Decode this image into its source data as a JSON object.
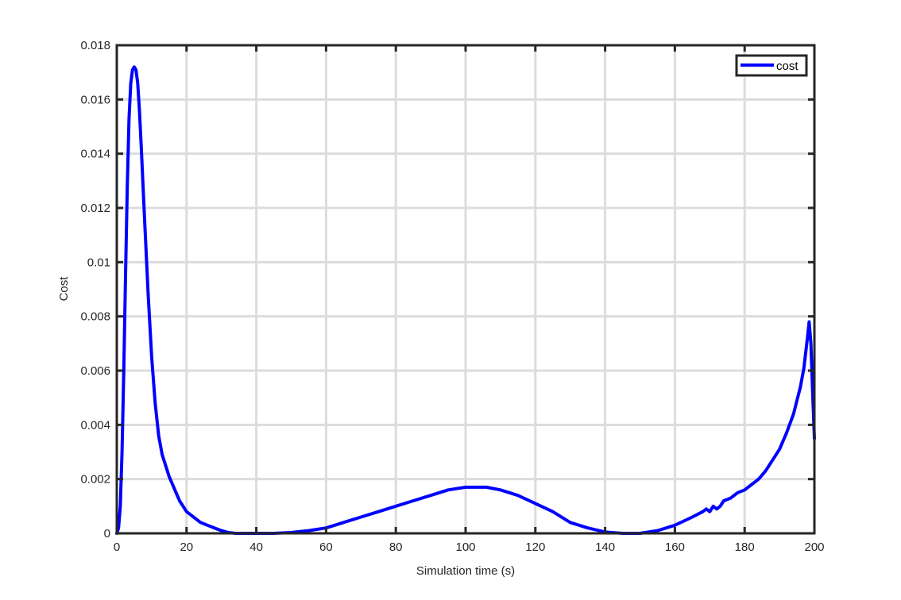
{
  "chart_data": {
    "type": "line",
    "xlabel": "Simulation time (s)",
    "ylabel": "Cost",
    "xlim": [
      0,
      200
    ],
    "ylim": [
      0,
      0.018
    ],
    "grid": true,
    "legend_position": "top-right",
    "x_ticks": [
      0,
      20,
      40,
      60,
      80,
      100,
      120,
      140,
      160,
      180,
      200
    ],
    "x_tick_labels": [
      "0",
      "20",
      "40",
      "60",
      "80",
      "100",
      "120",
      "140",
      "160",
      "180",
      "200"
    ],
    "y_ticks": [
      0,
      0.002,
      0.004,
      0.006,
      0.008,
      0.01,
      0.012,
      0.014,
      0.016,
      0.018
    ],
    "y_tick_labels": [
      "0",
      "0.002",
      "0.004",
      "0.006",
      "0.008",
      "0.01",
      "0.012",
      "0.014",
      "0.016",
      "0.018"
    ],
    "colors": {
      "series": "#0000ff",
      "grid": "#dcdcdc",
      "axes": "#262626"
    },
    "series": [
      {
        "name": "cost",
        "x": [
          0,
          0.5,
          1,
          1.5,
          2,
          2.5,
          3,
          3.5,
          4,
          4.5,
          5,
          5.5,
          6,
          6.5,
          7,
          8,
          9,
          10,
          11,
          12,
          13,
          14,
          15,
          16,
          17,
          18,
          19,
          20,
          21,
          22,
          24,
          26,
          28,
          30,
          32,
          34,
          36,
          40,
          45,
          50,
          55,
          60,
          65,
          70,
          75,
          80,
          85,
          90,
          95,
          100,
          103,
          106,
          110,
          115,
          120,
          125,
          130,
          135,
          140,
          145,
          148,
          150,
          155,
          160,
          165,
          168,
          169,
          170,
          171,
          172,
          173,
          174,
          176,
          178,
          180,
          182,
          184,
          186,
          188,
          190,
          192,
          194,
          196,
          197,
          198,
          198.5,
          199,
          199.5,
          200
        ],
        "y": [
          0.0,
          0.0002,
          0.001,
          0.003,
          0.006,
          0.0095,
          0.0128,
          0.0153,
          0.0166,
          0.0171,
          0.0172,
          0.0171,
          0.0166,
          0.0156,
          0.0143,
          0.0115,
          0.0088,
          0.0065,
          0.0048,
          0.0036,
          0.0029,
          0.0025,
          0.0021,
          0.0018,
          0.0015,
          0.0012,
          0.001,
          0.0008,
          0.0007,
          0.0006,
          0.0004,
          0.0003,
          0.0002,
          0.0001,
          3e-05,
          0.0,
          0.0,
          0.0,
          0.0,
          3e-05,
          0.0001,
          0.0002,
          0.0004,
          0.0006,
          0.0008,
          0.001,
          0.0012,
          0.0014,
          0.0016,
          0.0017,
          0.0017,
          0.0017,
          0.0016,
          0.0014,
          0.0011,
          0.0008,
          0.0004,
          0.0002,
          5e-05,
          0.0,
          0.0,
          0.0,
          0.0001,
          0.0003,
          0.0006,
          0.0008,
          0.0009,
          0.0008,
          0.001,
          0.0009,
          0.001,
          0.0012,
          0.0013,
          0.0015,
          0.0016,
          0.0018,
          0.002,
          0.0023,
          0.0027,
          0.0031,
          0.0037,
          0.0044,
          0.0054,
          0.0061,
          0.0072,
          0.0078,
          0.007,
          0.0052,
          0.0035
        ]
      }
    ]
  }
}
